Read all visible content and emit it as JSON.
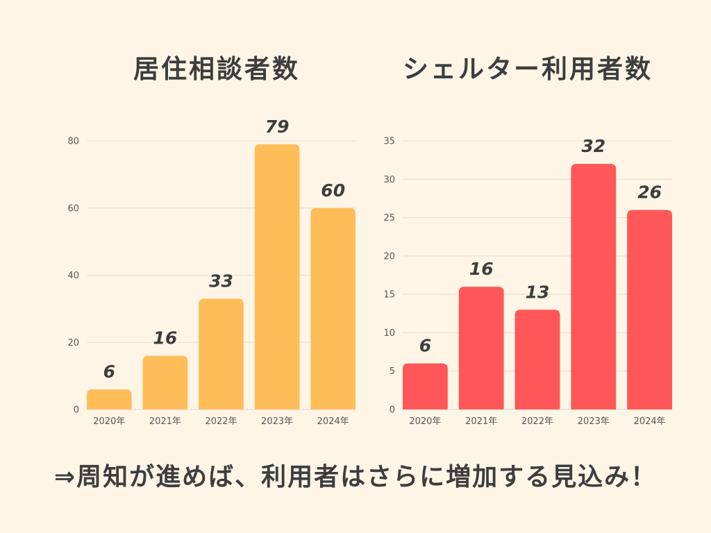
{
  "colors": {
    "background": "#FEF5E7",
    "text": "#3D3D3D",
    "axis_text": "#555555",
    "grid": "#E6DDD0"
  },
  "footer": {
    "text": "⇒周知が進めば、利用者はさらに増加する見込み！"
  },
  "chart_data": [
    {
      "type": "bar",
      "title": "居住相談者数",
      "categories": [
        "2020年",
        "2021年",
        "2022年",
        "2023年",
        "2024年"
      ],
      "values": [
        6,
        16,
        33,
        79,
        60
      ],
      "ylim": [
        0,
        80
      ],
      "yticks": [
        0,
        20,
        40,
        60,
        80
      ],
      "color": "#FFBD59",
      "grid": true,
      "data_labels": true
    },
    {
      "type": "bar",
      "title": "シェルター利用者数",
      "categories": [
        "2020年",
        "2021年",
        "2022年",
        "2023年",
        "2024年"
      ],
      "values": [
        6,
        16,
        13,
        32,
        26
      ],
      "ylim": [
        0,
        35
      ],
      "yticks": [
        0,
        5,
        10,
        15,
        20,
        25,
        30,
        35
      ],
      "color": "#FF5757",
      "grid": true,
      "data_labels": true
    }
  ]
}
